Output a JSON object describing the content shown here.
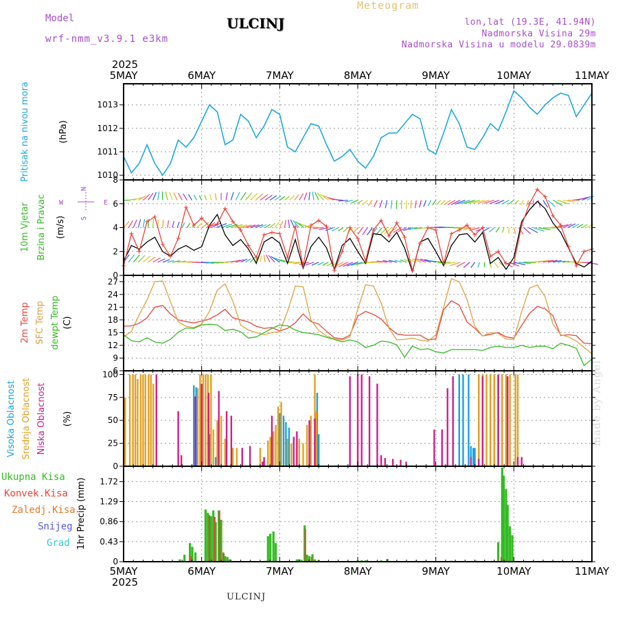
{
  "header": {
    "model_label": "Model",
    "model_name": "wrf-nmm_v3.9.1 e3km",
    "station": "ULCINJ",
    "product": "Meteogram",
    "lonlat": "lon,lat (19.3E, 41.94N)",
    "elevation": "Nadmorska Visina 29m",
    "model_elevation": "Nadmorska Visina u modelu 29.0839m"
  },
  "footer": {
    "station": "ULCINJ",
    "credit": "made by Angel"
  },
  "colors": {
    "pressure": "#1ea7e1",
    "green": "#33bb22",
    "red": "#e8443a",
    "orange": "#e0a040",
    "magenta": "#cc2299",
    "blue": "#3344cc",
    "cyan": "#22bbbb",
    "black": "#000000",
    "purple": "#a64dcc",
    "high_cloud": "#1aa0e0",
    "mid_cloud": "#e0a020",
    "low_cloud": "#cc1f8a"
  },
  "axis": {
    "year": "2025",
    "days": [
      "5MAY",
      "6MAY",
      "7MAY",
      "8MAY",
      "9MAY",
      "10MAY",
      "11MAY"
    ]
  },
  "compass": {
    "n": "N",
    "s": "S",
    "e": "E",
    "w": "W"
  },
  "chart_data": [
    {
      "type": "line",
      "id": "pressure",
      "ylabel_title": "Pritisak na nivou mora",
      "ylabel_unit": "(hPa)",
      "ylim": [
        1009.8,
        1013.9
      ],
      "yticks": [
        1010,
        1011,
        1012,
        1013
      ],
      "x_days": [
        0.0,
        0.1,
        0.2,
        0.3,
        0.4,
        0.5,
        0.6,
        0.7,
        0.8,
        0.9,
        1.0,
        1.1,
        1.2,
        1.3,
        1.4,
        1.5,
        1.6,
        1.7,
        1.8,
        1.9,
        2.0,
        2.1,
        2.2,
        2.3,
        2.4,
        2.5,
        2.6,
        2.7,
        2.8,
        2.9,
        3.0,
        3.1,
        3.2,
        3.3,
        3.4,
        3.5,
        3.6,
        3.7,
        3.8,
        3.9,
        4.0,
        4.1,
        4.2,
        4.3,
        4.4,
        4.5,
        4.6,
        4.7,
        4.8,
        4.9,
        5.0,
        5.1,
        5.2,
        5.3,
        5.4,
        5.5,
        5.6,
        5.7,
        5.8,
        5.9,
        6.0
      ],
      "values": [
        1010.8,
        1010.1,
        1010.5,
        1011.3,
        1010.5,
        1010.0,
        1010.5,
        1011.5,
        1011.2,
        1011.6,
        1012.3,
        1013.0,
        1012.7,
        1011.3,
        1011.5,
        1012.6,
        1012.3,
        1011.6,
        1012.1,
        1012.8,
        1012.6,
        1011.2,
        1011.0,
        1011.6,
        1012.2,
        1012.1,
        1011.3,
        1010.6,
        1010.8,
        1011.1,
        1010.6,
        1010.3,
        1010.8,
        1011.6,
        1011.8,
        1011.8,
        1012.2,
        1012.6,
        1012.4,
        1011.1,
        1010.9,
        1011.8,
        1012.8,
        1012.2,
        1011.2,
        1011.1,
        1011.6,
        1012.2,
        1011.9,
        1012.7,
        1013.6,
        1013.3,
        1012.9,
        1012.6,
        1013.0,
        1013.3,
        1013.5,
        1013.4,
        1012.5,
        1013.0,
        1013.5
      ]
    },
    {
      "type": "line",
      "id": "wind",
      "ylabel_title": "10m Vjetar",
      "ylabel_title2": "Brzina i Pravac",
      "ylabel_unit": "(m/s)",
      "ylim": [
        0,
        8
      ],
      "yticks": [
        0,
        2,
        4,
        6,
        8
      ],
      "x_days": [
        0.0,
        0.1,
        0.2,
        0.3,
        0.4,
        0.5,
        0.6,
        0.7,
        0.8,
        0.9,
        1.0,
        1.1,
        1.2,
        1.3,
        1.4,
        1.5,
        1.6,
        1.7,
        1.8,
        1.9,
        2.0,
        2.1,
        2.2,
        2.3,
        2.4,
        2.5,
        2.6,
        2.7,
        2.8,
        2.9,
        3.0,
        3.1,
        3.2,
        3.3,
        3.4,
        3.5,
        3.6,
        3.7,
        3.8,
        3.9,
        4.0,
        4.1,
        4.2,
        4.3,
        4.4,
        4.5,
        4.6,
        4.7,
        4.8,
        4.9,
        5.0,
        5.1,
        5.2,
        5.3,
        5.4,
        5.5,
        5.6,
        5.7,
        5.8,
        5.9,
        6.0
      ],
      "series": [
        {
          "name": "speed",
          "color": "#000000",
          "values": [
            1.2,
            2.5,
            2.2,
            2.8,
            3.2,
            2.0,
            1.6,
            2.2,
            2.5,
            2.1,
            2.4,
            4.2,
            5.1,
            3.4,
            2.5,
            3.0,
            2.2,
            1.0,
            2.8,
            3.2,
            2.7,
            1.0,
            3.0,
            0.6,
            2.4,
            3.2,
            2.3,
            0.5,
            2.5,
            3.1,
            2.0,
            1.0,
            3.5,
            3.4,
            2.8,
            3.6,
            2.3,
            0.3,
            2.8,
            3.1,
            2.0,
            0.8,
            2.5,
            3.4,
            3.5,
            2.8,
            3.6,
            1.0,
            1.5,
            0.5,
            1.5,
            4.5,
            5.5,
            6.2,
            5.6,
            4.4,
            3.6,
            2.3,
            1.0,
            0.7,
            1.2
          ]
        },
        {
          "name": "gust",
          "color": "#e8443a",
          "values": [
            0.8,
            3.5,
            2.0,
            4.5,
            4.9,
            2.6,
            1.6,
            3.1,
            5.7,
            4.2,
            4.8,
            4.1,
            4.3,
            5.6,
            4.5,
            3.8,
            2.5,
            1.5,
            3.4,
            3.6,
            3.5,
            1.5,
            4.1,
            0.8,
            4.2,
            4.6,
            4.1,
            0.4,
            2.0,
            4.0,
            3.1,
            1.2,
            3.8,
            4.6,
            3.3,
            4.4,
            3.2,
            0.4,
            2.7,
            4.0,
            3.8,
            1.0,
            3.5,
            3.8,
            4.2,
            3.4,
            4.0,
            1.6,
            2.0,
            1.0,
            1.0,
            4.2,
            6.0,
            7.2,
            6.6,
            5.0,
            4.2,
            2.4,
            0.8,
            2.0,
            2.2
          ]
        }
      ]
    },
    {
      "type": "line",
      "id": "temperature",
      "ylabel_title": "2m Temp",
      "ylabel_title2": "SFC Temp",
      "ylabel_title3": "dewpt Temp",
      "ylabel_unit": "(C)",
      "ylim": [
        6,
        28.5
      ],
      "yticks": [
        6,
        9,
        12,
        15,
        18,
        21,
        24,
        27
      ],
      "x_days": [
        0.0,
        0.1,
        0.2,
        0.3,
        0.4,
        0.5,
        0.6,
        0.7,
        0.8,
        0.9,
        1.0,
        1.1,
        1.2,
        1.3,
        1.4,
        1.5,
        1.6,
        1.7,
        1.8,
        1.9,
        2.0,
        2.1,
        2.2,
        2.3,
        2.4,
        2.5,
        2.6,
        2.7,
        2.8,
        2.9,
        3.0,
        3.1,
        3.2,
        3.3,
        3.4,
        3.5,
        3.6,
        3.7,
        3.8,
        3.9,
        4.0,
        4.1,
        4.2,
        4.3,
        4.4,
        4.5,
        4.6,
        4.7,
        4.8,
        4.9,
        5.0,
        5.1,
        5.2,
        5.3,
        5.4,
        5.5,
        5.6,
        5.7,
        5.8,
        5.9,
        6.0
      ],
      "series": [
        {
          "name": "2m Temp",
          "color": "#e8443a",
          "values": [
            16.5,
            16.6,
            17.2,
            18.5,
            21.0,
            21.4,
            19.4,
            18.0,
            17.6,
            17.3,
            17.7,
            18.2,
            19.2,
            20.5,
            18.5,
            18.0,
            17.5,
            16.5,
            16.0,
            16.2,
            15.4,
            16.0,
            17.3,
            19.4,
            17.6,
            17.0,
            15.3,
            13.8,
            13.5,
            14.4,
            18.9,
            20.0,
            19.3,
            18.2,
            16.2,
            14.7,
            14.4,
            14.4,
            14.4,
            13.3,
            13.5,
            20.4,
            22.5,
            21.5,
            17.5,
            16.0,
            14.2,
            14.6,
            15.0,
            14.0,
            13.7,
            16.7,
            19.5,
            21.2,
            20.6,
            19.0,
            14.3,
            14.5,
            14.3,
            12.5,
            12.4
          ]
        },
        {
          "name": "SFC Temp",
          "color": "#e0a040",
          "values": [
            14.0,
            15.3,
            19.2,
            22.7,
            27.0,
            27.2,
            22.3,
            17.5,
            16.5,
            16.2,
            17.0,
            20.0,
            25.0,
            26.5,
            22.4,
            16.8,
            15.6,
            15.0,
            14.5,
            15.0,
            15.2,
            20.0,
            26.0,
            25.8,
            18.0,
            15.5,
            14.2,
            13.5,
            13.2,
            14.0,
            20.5,
            26.3,
            26.0,
            22.0,
            16.0,
            13.3,
            13.4,
            13.7,
            13.2,
            13.0,
            14.5,
            21.0,
            27.7,
            27.0,
            22.8,
            16.5,
            14.2,
            15.0,
            14.8,
            13.5,
            13.4,
            20.0,
            25.5,
            26.2,
            23.5,
            17.0,
            14.5,
            14.0,
            13.0,
            11.5,
            10.0
          ]
        },
        {
          "name": "dewpt Temp",
          "color": "#33bb22",
          "values": [
            14.5,
            13.1,
            12.8,
            13.8,
            12.8,
            12.5,
            13.4,
            15.1,
            16.1,
            16.0,
            16.8,
            17.0,
            16.8,
            15.5,
            15.8,
            15.2,
            13.7,
            14.0,
            15.0,
            16.0,
            16.8,
            16.6,
            15.6,
            15.0,
            14.8,
            14.5,
            13.9,
            13.4,
            12.8,
            13.3,
            12.8,
            11.5,
            12.0,
            13.0,
            12.8,
            12.1,
            9.2,
            11.8,
            11.0,
            11.2,
            10.5,
            10.2,
            11.0,
            11.0,
            11.0,
            11.0,
            10.8,
            11.5,
            11.8,
            11.5,
            11.5,
            12.0,
            11.5,
            11.8,
            11.8,
            11.2,
            12.5,
            12.0,
            11.3,
            7.2,
            8.8
          ]
        }
      ]
    },
    {
      "type": "bar",
      "id": "cloud",
      "ylabel_title": "Visoka Oblacnost",
      "ylabel_title2": "Srednja Oblacnost",
      "ylabel_title3": "Niska Oblacnost",
      "ylabel_unit": "(%)",
      "ylim": [
        0,
        104
      ],
      "yticks": [
        0,
        25,
        50,
        75,
        100
      ],
      "series": [
        {
          "name": "Visoka Oblacnost",
          "color": "#1aa0e0",
          "x_days": [
            0.9,
            0.93,
            1.1,
            1.18,
            1.2,
            2.0,
            2.05,
            2.08,
            2.12,
            2.48,
            2.5,
            4.3,
            4.35,
            4.42,
            4.45,
            4.48,
            4.5,
            4.55,
            4.6,
            4.7,
            4.75,
            4.8,
            4.85,
            4.9
          ],
          "values": [
            88,
            86,
            35,
            10,
            6,
            58,
            55,
            48,
            42,
            80,
            35,
            100,
            100,
            100,
            22,
            20,
            20,
            100,
            100,
            100,
            100,
            98,
            100,
            100
          ]
        },
        {
          "name": "Srednja Oblacnost",
          "color": "#e0a020",
          "x_days": [
            0.02,
            0.08,
            0.12,
            0.15,
            0.18,
            0.22,
            0.25,
            0.28,
            0.32,
            0.35,
            0.38,
            0.95,
            0.98,
            1.02,
            1.05,
            1.08,
            1.12,
            1.15,
            1.2,
            1.25,
            1.3,
            1.4,
            1.45,
            1.75,
            1.85,
            1.88,
            1.92,
            1.95,
            1.98,
            2.02,
            2.1,
            2.15,
            2.25,
            2.3,
            2.35,
            2.4,
            2.45,
            2.47,
            4.55,
            4.6,
            4.65,
            4.7,
            4.75,
            4.8,
            4.85,
            4.9,
            4.95,
            5.02,
            5.05
          ],
          "values": [
            75,
            100,
            100,
            100,
            95,
            100,
            100,
            100,
            100,
            100,
            90,
            85,
            100,
            100,
            100,
            100,
            100,
            40,
            50,
            55,
            30,
            20,
            20,
            20,
            28,
            32,
            38,
            45,
            65,
            70,
            30,
            25,
            30,
            25,
            45,
            55,
            100,
            60,
            100,
            100,
            100,
            100,
            100,
            100,
            100,
            100,
            100,
            100,
            100
          ]
        },
        {
          "name": "Niska Oblacnost",
          "color": "#cc1f8a",
          "x_days": [
            0.42,
            0.7,
            0.74,
            0.92,
            1.0,
            1.09,
            1.22,
            1.32,
            1.38,
            1.52,
            1.62,
            1.78,
            1.8,
            1.9,
            2.18,
            2.22,
            2.38,
            2.45,
            2.9,
            3.0,
            3.05,
            3.15,
            3.25,
            3.3,
            3.35,
            3.45,
            3.55,
            3.62,
            3.98,
            4.08,
            4.15,
            4.22,
            4.45,
            4.55,
            4.6,
            4.8,
            4.92,
            5.05,
            5.1
          ],
          "values": [
            100,
            60,
            12,
            76,
            90,
            80,
            82,
            60,
            55,
            20,
            22,
            5,
            10,
            55,
            32,
            38,
            50,
            52,
            98,
            100,
            100,
            98,
            90,
            12,
            9,
            8,
            7,
            5,
            40,
            40,
            85,
            98,
            10,
            8,
            98,
            100,
            98,
            10,
            10
          ]
        }
      ]
    },
    {
      "type": "bar",
      "id": "precip",
      "ylabel_title": "1hr Precip (mm)",
      "ylim": [
        0,
        2.05
      ],
      "yticks": [
        0,
        0.43,
        0.86,
        1.29,
        1.72
      ],
      "legend": [
        "Ukupna Kisa",
        "Konvek.Kisa",
        "Zaledj.Kisa",
        "Snijeg",
        "Grad"
      ],
      "series": [
        {
          "name": "Ukupna Kisa",
          "color": "#33bb22",
          "x_days": [
            0.72,
            0.78,
            0.85,
            0.88,
            0.92,
            1.05,
            1.08,
            1.12,
            1.15,
            1.18,
            1.22,
            1.25,
            1.28,
            1.3,
            1.33,
            1.36,
            1.82,
            1.85,
            1.88,
            1.92,
            1.95,
            2.22,
            2.25,
            2.28,
            2.32,
            2.35,
            2.38,
            2.42,
            2.45,
            2.5,
            3.0,
            3.05,
            3.1,
            3.3,
            3.38,
            3.75,
            4.2,
            4.52,
            4.8,
            4.85,
            4.87,
            4.9,
            4.92,
            4.95,
            4.98
          ],
          "values": [
            0.05,
            0.15,
            0.4,
            0.32,
            0.2,
            1.12,
            1.05,
            0.98,
            1.1,
            0.85,
            1.1,
            0.9,
            0.18,
            0.12,
            0.1,
            0.05,
            0.02,
            0.55,
            0.6,
            0.65,
            0.4,
            0.05,
            0.05,
            0.04,
            0.78,
            0.15,
            0.12,
            0.16,
            0.05,
            0.03,
            0.03,
            0.03,
            0.03,
            0.03,
            0.06,
            0.02,
            0.02,
            0.02,
            0.42,
            2.02,
            1.85,
            1.56,
            1.22,
            0.76,
            0.57
          ]
        },
        {
          "name": "Konvek.Kisa",
          "color": "#e8443a",
          "x_days": [
            0.85,
            1.09,
            1.16,
            1.22,
            1.27,
            2.32,
            2.4,
            4.83
          ],
          "values": [
            0.12,
            1.0,
            0.96,
            1.1,
            0.2,
            0.7,
            0.1,
            0.1
          ]
        },
        {
          "name": "Zaledj.Kisa",
          "color": "#e0782a",
          "x_days": [],
          "values": []
        },
        {
          "name": "Snijeg",
          "color": "#5555ee",
          "x_days": [],
          "values": []
        },
        {
          "name": "Grad",
          "color": "#33cccc",
          "x_days": [],
          "values": []
        }
      ]
    }
  ]
}
